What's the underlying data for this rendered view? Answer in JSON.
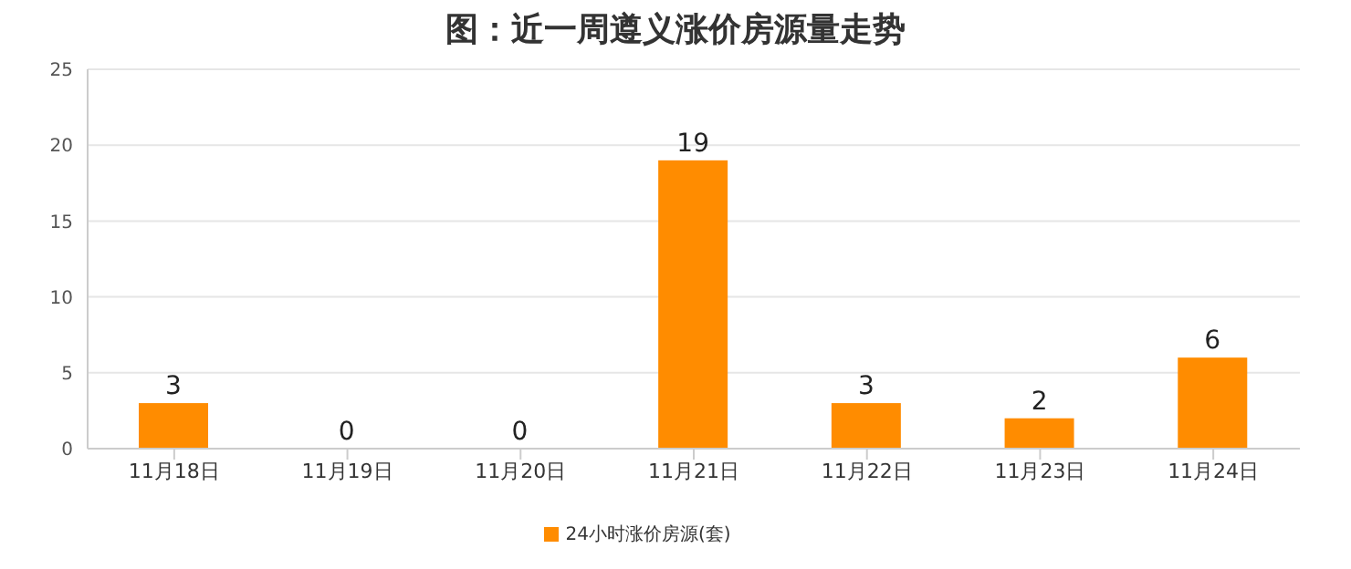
{
  "chart_data": {
    "type": "bar",
    "title": "图：近一周遵义涨价房源量走势",
    "categories": [
      "11月18日",
      "11月19日",
      "11月20日",
      "11月21日",
      "11月22日",
      "11月23日",
      "11月24日"
    ],
    "series": [
      {
        "name": "24小时涨价房源(套)",
        "color": "#ff8c00",
        "values": [
          3,
          0,
          0,
          19,
          3,
          2,
          6
        ]
      }
    ],
    "ylim": [
      0,
      25
    ],
    "yticks": [
      0,
      5,
      10,
      15,
      20,
      25
    ],
    "grid": "y",
    "legend": "bottom",
    "data_labels": true
  }
}
